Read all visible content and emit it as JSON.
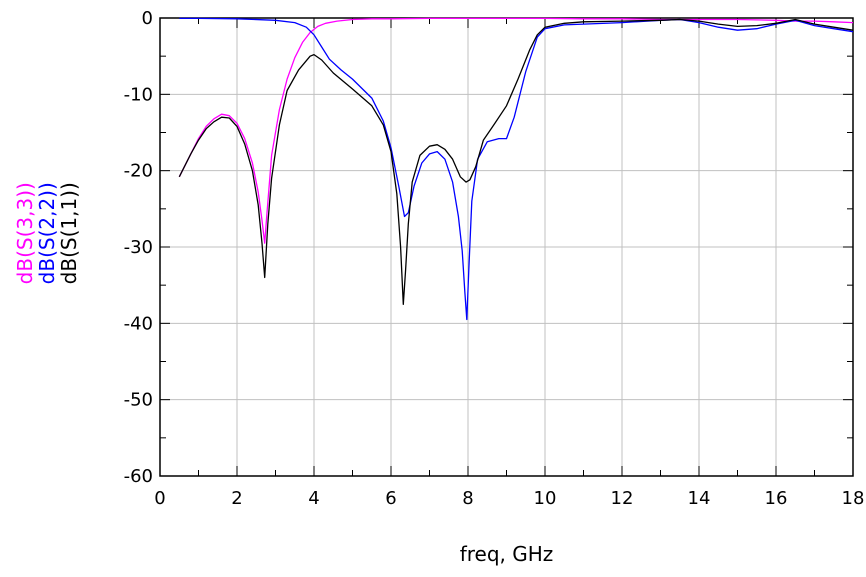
{
  "chart_data": {
    "type": "line",
    "title": "",
    "xlabel": "freq, GHz",
    "xlim": [
      0,
      18
    ],
    "ylim": [
      -60,
      0
    ],
    "x_ticks": [
      "0",
      "2",
      "4",
      "6",
      "8",
      "10",
      "12",
      "14",
      "16",
      "18"
    ],
    "y_ticks": [
      "0",
      "-10",
      "-20",
      "-30",
      "-40",
      "-50",
      "-60"
    ],
    "grid": true,
    "legend_placement": "left, vertical text stacked as y-axis label",
    "series": [
      {
        "name": "dB(S(3,3))",
        "color": "#ff00ff",
        "x": [
          0.5,
          0.8,
          1.0,
          1.2,
          1.4,
          1.6,
          1.8,
          2.0,
          2.2,
          2.4,
          2.55,
          2.65,
          2.72,
          2.78,
          2.9,
          3.1,
          3.3,
          3.5,
          3.7,
          3.9,
          4.1,
          4.3,
          4.6,
          5.0,
          5.5,
          6.0,
          7.0,
          8.0,
          9.0,
          10.0,
          11.0,
          12.0,
          13.0,
          13.5,
          14.0,
          15.0,
          16.0,
          16.5,
          17.0,
          17.5,
          18.0
        ],
        "y": [
          -20.8,
          -17.8,
          -15.8,
          -14.2,
          -13.2,
          -12.6,
          -12.8,
          -13.8,
          -15.8,
          -19.0,
          -22.8,
          -26.5,
          -29.5,
          -25.5,
          -18.0,
          -12.0,
          -8.0,
          -5.2,
          -3.2,
          -1.9,
          -1.1,
          -0.7,
          -0.4,
          -0.2,
          -0.1,
          -0.1,
          -0.05,
          -0.05,
          -0.05,
          -0.05,
          -0.1,
          -0.1,
          -0.2,
          -0.2,
          -0.2,
          -0.2,
          -0.3,
          -0.4,
          -0.4,
          -0.5,
          -0.6
        ]
      },
      {
        "name": "dB(S(2,2))",
        "color": "#0000ff",
        "x": [
          0.5,
          1.0,
          2.0,
          3.0,
          3.5,
          3.8,
          4.0,
          4.2,
          4.4,
          4.7,
          5.0,
          5.5,
          5.8,
          6.0,
          6.2,
          6.35,
          6.45,
          6.6,
          6.8,
          7.0,
          7.2,
          7.4,
          7.6,
          7.75,
          7.85,
          7.92,
          7.97,
          8.02,
          8.1,
          8.25,
          8.5,
          8.8,
          9.0,
          9.2,
          9.5,
          9.8,
          10.0,
          10.5,
          11.0,
          12.0,
          13.0,
          13.5,
          14.0,
          14.5,
          15.0,
          15.5,
          16.0,
          16.5,
          17.0,
          17.5,
          18.0
        ],
        "y": [
          -0.05,
          -0.05,
          -0.1,
          -0.3,
          -0.6,
          -1.2,
          -2.2,
          -3.8,
          -5.4,
          -6.8,
          -8.0,
          -10.5,
          -13.5,
          -17.0,
          -22.0,
          -26.0,
          -25.5,
          -22.0,
          -19.0,
          -17.8,
          -17.5,
          -18.5,
          -21.5,
          -26.0,
          -30.5,
          -36.0,
          -39.5,
          -33.0,
          -24.0,
          -18.5,
          -16.2,
          -15.8,
          -15.8,
          -13.0,
          -7.0,
          -2.5,
          -1.4,
          -0.9,
          -0.8,
          -0.6,
          -0.3,
          -0.2,
          -0.6,
          -1.2,
          -1.6,
          -1.4,
          -0.8,
          -0.3,
          -1.0,
          -1.4,
          -1.8
        ]
      },
      {
        "name": "dB(S(1,1))",
        "color": "#000000",
        "x": [
          0.5,
          0.8,
          1.0,
          1.2,
          1.4,
          1.6,
          1.8,
          2.0,
          2.2,
          2.4,
          2.55,
          2.65,
          2.72,
          2.8,
          2.9,
          3.1,
          3.3,
          3.6,
          3.9,
          4.0,
          4.2,
          4.5,
          5.0,
          5.5,
          5.8,
          6.0,
          6.15,
          6.25,
          6.32,
          6.38,
          6.45,
          6.55,
          6.75,
          7.0,
          7.2,
          7.4,
          7.6,
          7.8,
          7.95,
          8.05,
          8.2,
          8.4,
          8.7,
          9.0,
          9.3,
          9.6,
          9.8,
          10.0,
          10.5,
          11.0,
          12.0,
          13.0,
          13.5,
          14.0,
          14.5,
          15.0,
          15.5,
          16.0,
          16.5,
          17.0,
          17.5,
          18.0
        ],
        "y": [
          -20.8,
          -17.8,
          -16.0,
          -14.5,
          -13.6,
          -13.0,
          -13.1,
          -14.2,
          -16.5,
          -20.0,
          -24.5,
          -29.5,
          -34.0,
          -27.0,
          -21.0,
          -14.0,
          -9.5,
          -6.8,
          -5.0,
          -4.8,
          -5.5,
          -7.2,
          -9.3,
          -11.5,
          -14.0,
          -17.5,
          -23.0,
          -30.0,
          -37.5,
          -33.0,
          -27.0,
          -21.5,
          -18.0,
          -16.8,
          -16.6,
          -17.2,
          -18.5,
          -20.8,
          -21.5,
          -21.2,
          -19.5,
          -16.0,
          -13.8,
          -11.5,
          -8.0,
          -4.2,
          -2.2,
          -1.2,
          -0.7,
          -0.5,
          -0.4,
          -0.3,
          -0.2,
          -0.4,
          -0.8,
          -1.1,
          -1.0,
          -0.7,
          -0.2,
          -0.8,
          -1.2,
          -1.6
        ]
      }
    ]
  }
}
